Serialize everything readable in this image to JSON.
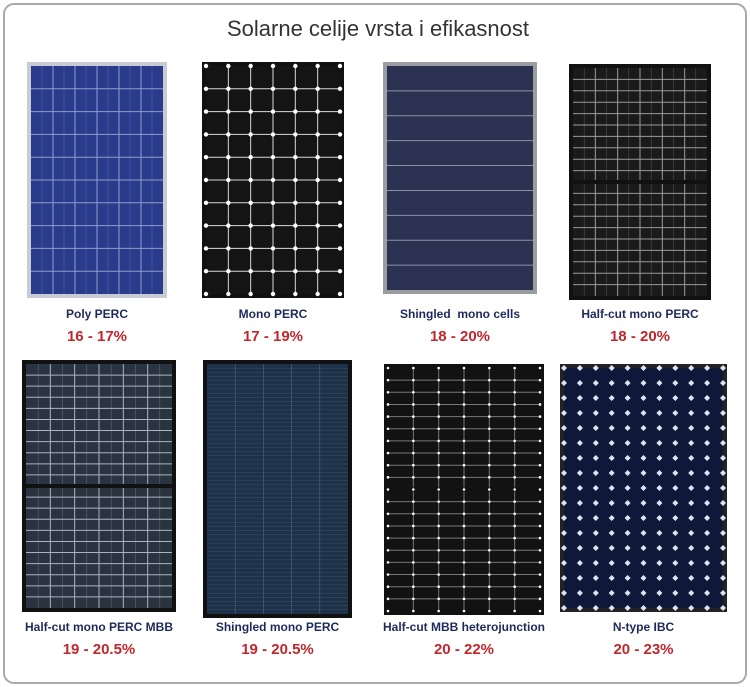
{
  "title": "Solarne celije vrsta i efikasnost",
  "panels": [
    {
      "name": "Poly PERC",
      "efficiency": "16 - 17%"
    },
    {
      "name": "Mono PERC",
      "efficiency": "17 - 19%"
    },
    {
      "name": "Shingled  mono cells",
      "efficiency": "18 - 20%"
    },
    {
      "name": "Half-cut mono PERC",
      "efficiency": "18 - 20%"
    },
    {
      "name": "Half-cut mono PERC MBB",
      "efficiency": "19 - 20.5%"
    },
    {
      "name": "Shingled mono PERC",
      "efficiency": "19 - 20.5%"
    },
    {
      "name": "Half-cut MBB heterojunction",
      "efficiency": "20 - 22%"
    },
    {
      "name": "N-type IBC",
      "efficiency": "20 - 23%"
    }
  ]
}
